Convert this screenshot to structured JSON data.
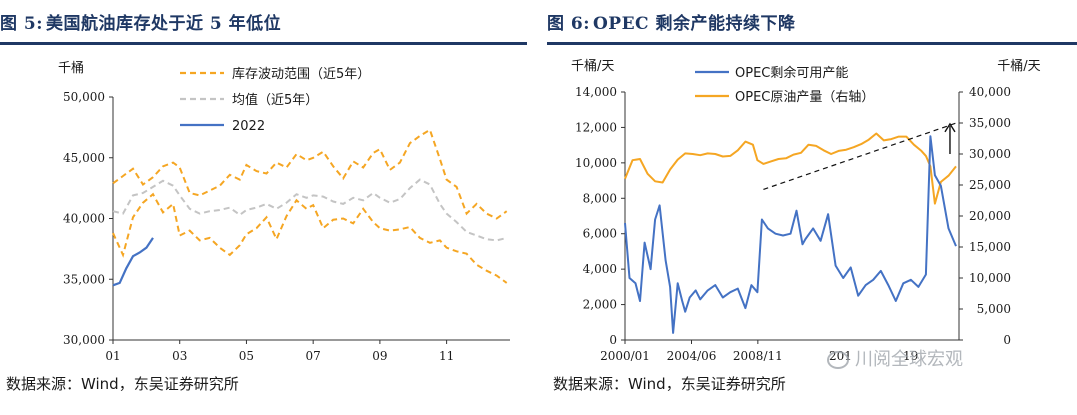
{
  "panel1": {
    "fig_no": "图 5:",
    "title": "美国航油库存处于近 5 年低位",
    "source": "数据来源：Wind，东吴证券研究所"
  },
  "panel2": {
    "fig_no": "图 6:",
    "title": "OPEC 剩余产能持续下降",
    "source": "数据来源：Wind，东吴证券研究所",
    "watermark": "川阅全球宏观"
  },
  "chart_data": [
    {
      "type": "line",
      "ylabel": "千桶",
      "ylim": [
        30000,
        50000
      ],
      "yticks": [
        30000,
        35000,
        40000,
        45000,
        50000
      ],
      "yticklabels": [
        "30,000",
        "35,000",
        "40,000",
        "45,000",
        "50,000"
      ],
      "xlim": [
        1,
        12.9
      ],
      "xticks": [
        1,
        3,
        5,
        7,
        9,
        11
      ],
      "xticklabels": [
        "01",
        "03",
        "05",
        "07",
        "09",
        "11"
      ],
      "grid": false,
      "legend_position": "top-center",
      "series": [
        {
          "name": "库存波动范围（近5年）",
          "style": "dashed",
          "color": "#f5a623",
          "x": [
            1,
            1.3,
            1.6,
            1.9,
            2.2,
            2.5,
            2.8,
            3.0,
            3.3,
            3.6,
            3.9,
            4.2,
            4.5,
            4.8,
            5.0,
            5.3,
            5.6,
            5.9,
            6.2,
            6.5,
            6.8,
            7.0,
            7.3,
            7.6,
            7.9,
            8.2,
            8.5,
            8.8,
            9.0,
            9.3,
            9.6,
            9.9,
            10.2,
            10.5,
            10.8,
            11.0,
            11.3,
            11.6,
            11.9,
            12.2,
            12.5,
            12.8
          ],
          "y": [
            42900,
            43500,
            44100,
            42800,
            43400,
            44300,
            44600,
            44200,
            42100,
            41900,
            42300,
            42700,
            43600,
            43200,
            44400,
            43900,
            43700,
            44600,
            44200,
            45300,
            44800,
            45000,
            45500,
            44300,
            43300,
            44700,
            44200,
            45400,
            45700,
            44000,
            44600,
            46200,
            46800,
            47300,
            44900,
            43200,
            42600,
            40400,
            41200,
            40400,
            40000,
            40600
          ]
        },
        {
          "name": "库存波动范围（近5年）-low",
          "style": "dashed",
          "color": "#f5a623",
          "x": [
            1,
            1.3,
            1.6,
            1.9,
            2.2,
            2.5,
            2.8,
            3.0,
            3.3,
            3.6,
            3.9,
            4.2,
            4.5,
            4.8,
            5.0,
            5.3,
            5.6,
            5.9,
            6.2,
            6.5,
            6.8,
            7.0,
            7.3,
            7.6,
            7.9,
            8.2,
            8.5,
            8.8,
            9.0,
            9.3,
            9.6,
            9.9,
            10.2,
            10.5,
            10.8,
            11.0,
            11.3,
            11.6,
            11.9,
            12.2,
            12.5,
            12.8
          ],
          "y": [
            38800,
            37000,
            40100,
            41300,
            42000,
            40500,
            41200,
            38600,
            39000,
            38200,
            38400,
            37600,
            37000,
            37800,
            38700,
            39200,
            40100,
            38300,
            40200,
            41500,
            40800,
            41100,
            39200,
            39900,
            40000,
            39600,
            40800,
            39700,
            39200,
            39000,
            39100,
            39300,
            38400,
            38000,
            38200,
            37600,
            37300,
            37100,
            36200,
            35700,
            35300,
            34700
          ]
        },
        {
          "name": "均值（近5年）",
          "style": "dashed",
          "color": "#c4c4c4",
          "x": [
            1,
            1.3,
            1.6,
            1.9,
            2.2,
            2.5,
            2.8,
            3.0,
            3.3,
            3.6,
            3.9,
            4.2,
            4.5,
            4.8,
            5.0,
            5.3,
            5.6,
            5.9,
            6.2,
            6.5,
            6.8,
            7.0,
            7.3,
            7.6,
            7.9,
            8.2,
            8.5,
            8.8,
            9.0,
            9.3,
            9.6,
            9.9,
            10.2,
            10.5,
            10.8,
            11.0,
            11.3,
            11.6,
            11.9,
            12.2,
            12.5,
            12.8
          ],
          "y": [
            40600,
            40400,
            41900,
            42100,
            42600,
            43100,
            42700,
            41900,
            40800,
            40400,
            40600,
            40700,
            40900,
            40300,
            40700,
            40900,
            41200,
            40800,
            41300,
            42000,
            41700,
            41900,
            41800,
            41400,
            41200,
            41700,
            41500,
            42100,
            41700,
            41300,
            41600,
            42500,
            43200,
            42800,
            41200,
            40400,
            39700,
            38900,
            38600,
            38300,
            38200,
            38400
          ]
        },
        {
          "name": "2022",
          "style": "solid",
          "color": "#4472c4",
          "x": [
            1,
            1.2,
            1.4,
            1.6,
            1.8,
            2.0,
            2.2
          ],
          "y": [
            34500,
            34700,
            35900,
            36900,
            37200,
            37600,
            38400
          ]
        }
      ]
    },
    {
      "type": "line",
      "ylabel": "千桶/天",
      "y2label": "千桶/天",
      "ylim": [
        0,
        14000
      ],
      "yticks": [
        0,
        2000,
        4000,
        6000,
        8000,
        10000,
        12000,
        14000
      ],
      "yticklabels": [
        "0",
        "2,000",
        "4,000",
        "6,000",
        "8,000",
        "10,000",
        "12,000",
        "14,000"
      ],
      "y2lim": [
        0,
        40000
      ],
      "y2ticks": [
        0,
        5000,
        10000,
        15000,
        20000,
        25000,
        30000,
        35000,
        40000
      ],
      "y2ticklabels": [
        "0",
        "5,000",
        "10,000",
        "15,000",
        "20,000",
        "25,000",
        "30,000",
        "35,000",
        "40,000"
      ],
      "xlim": [
        2000.0,
        2022.2
      ],
      "xticks": [
        2000.0,
        2004.42,
        2008.83
      ],
      "xticklabels": [
        "2000/01",
        "2004/06",
        "2008/11"
      ],
      "partial_tick_labels": [
        "201",
        "19"
      ],
      "grid": false,
      "legend_position": "top-left",
      "series": [
        {
          "name": "OPEC剩余可用产能",
          "axis": "left",
          "color": "#4472c4",
          "x": [
            2000.0,
            2000.3,
            2000.7,
            2001.0,
            2001.3,
            2001.7,
            2002.0,
            2002.3,
            2002.7,
            2003.0,
            2003.2,
            2003.5,
            2003.8,
            2004.0,
            2004.3,
            2004.7,
            2005.0,
            2005.5,
            2006.0,
            2006.5,
            2007.0,
            2007.5,
            2008.0,
            2008.4,
            2008.8,
            2009.1,
            2009.5,
            2010.0,
            2010.5,
            2011.0,
            2011.4,
            2011.8,
            2012.0,
            2012.5,
            2013.0,
            2013.5,
            2014.0,
            2014.5,
            2015.0,
            2015.5,
            2016.0,
            2016.5,
            2017.0,
            2017.5,
            2018.0,
            2018.5,
            2019.0,
            2019.5,
            2020.0,
            2020.3,
            2020.6,
            2021.0,
            2021.5,
            2022.0
          ],
          "y": [
            6600,
            3500,
            3200,
            2200,
            5500,
            4000,
            6800,
            7600,
            4500,
            3000,
            400,
            3200,
            2200,
            1600,
            2400,
            2800,
            2300,
            2800,
            3100,
            2400,
            2700,
            2900,
            1800,
            3100,
            2700,
            6800,
            6300,
            6000,
            5900,
            6000,
            7300,
            5400,
            5700,
            6300,
            5600,
            7100,
            4200,
            3500,
            4100,
            2500,
            3100,
            3400,
            3900,
            3100,
            2200,
            3200,
            3400,
            3000,
            3700,
            11500,
            9300,
            8700,
            6300,
            5300
          ]
        },
        {
          "name": "OPEC原油产量（右轴）",
          "axis": "right",
          "color": "#f5a623",
          "x": [
            2000.0,
            2000.5,
            2001.0,
            2001.5,
            2002.0,
            2002.5,
            2003.0,
            2003.5,
            2004.0,
            2004.5,
            2005.0,
            2005.5,
            2006.0,
            2006.5,
            2007.0,
            2007.5,
            2008.0,
            2008.5,
            2008.8,
            2009.2,
            2009.7,
            2010.2,
            2010.7,
            2011.2,
            2011.7,
            2012.2,
            2012.7,
            2013.2,
            2013.7,
            2014.2,
            2014.7,
            2015.2,
            2015.7,
            2016.2,
            2016.7,
            2017.2,
            2017.7,
            2018.2,
            2018.7,
            2019.2,
            2019.7,
            2020.0,
            2020.3,
            2020.6,
            2021.0,
            2021.5,
            2022.0
          ],
          "y": [
            26000,
            29000,
            29200,
            26800,
            25600,
            25400,
            27500,
            29100,
            30100,
            30000,
            29800,
            30100,
            30000,
            29600,
            29700,
            30600,
            32000,
            31500,
            29000,
            28400,
            28800,
            29200,
            29300,
            29900,
            30200,
            31500,
            31300,
            30600,
            30000,
            30500,
            30700,
            31100,
            31600,
            32300,
            33300,
            32200,
            32400,
            32800,
            32800,
            31500,
            30500,
            29700,
            28000,
            22000,
            25500,
            26500,
            28000
          ]
        }
      ],
      "annotations": [
        {
          "type": "dashed-trendline",
          "from": [
            2009.2,
            8500
          ],
          "to": [
            2022.2,
            12300
          ],
          "axis": "left"
        },
        {
          "type": "arrow",
          "x": 2021.6,
          "from_y": 10500,
          "to_y": 12200,
          "axis": "left"
        }
      ]
    }
  ]
}
